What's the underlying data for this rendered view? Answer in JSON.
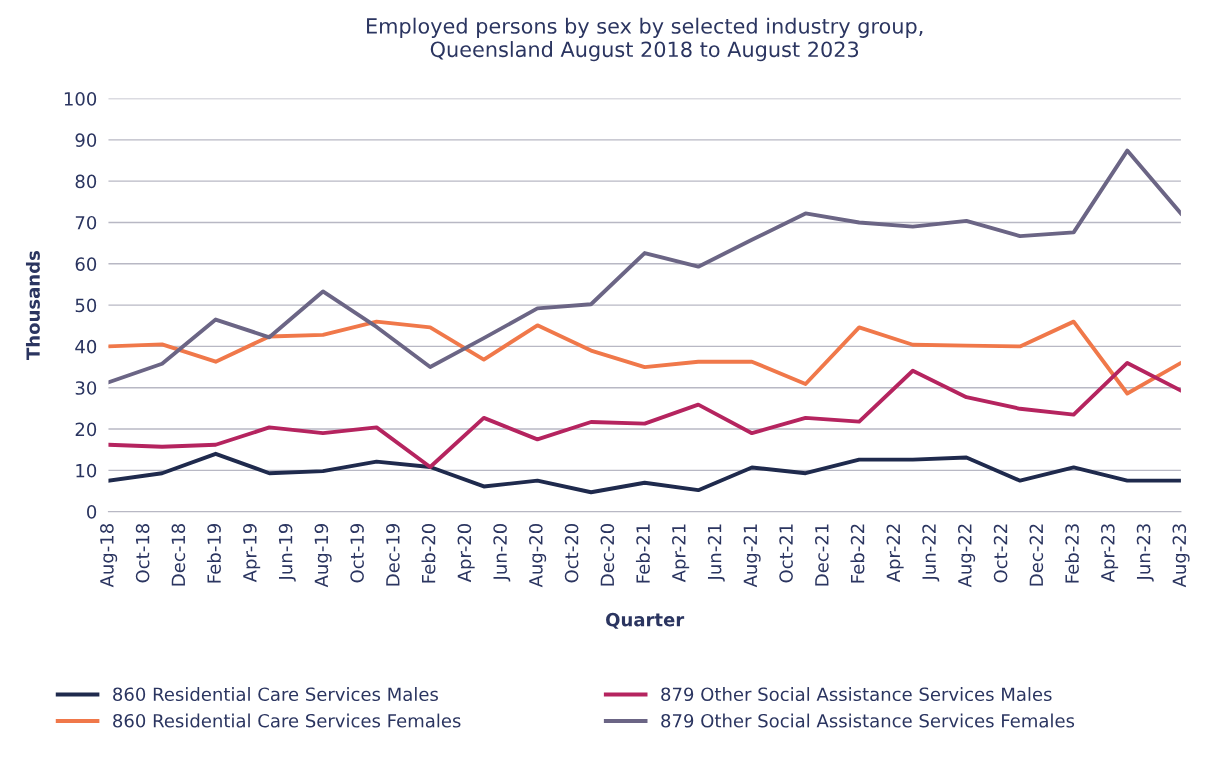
{
  "chart_data": {
    "type": "line",
    "title": "Employed persons by sex by selected industry group,\nQueensland August 2018 to August 2023",
    "xlabel": "Quarter",
    "ylabel": "Thousands",
    "x": [
      "2018-08",
      "2018-11",
      "2019-02",
      "2019-05",
      "2019-08",
      "2019-11",
      "2020-02",
      "2020-05",
      "2020-08",
      "2020-11",
      "2021-02",
      "2021-05",
      "2021-08",
      "2021-11",
      "2022-02",
      "2022-05",
      "2022-08",
      "2022-11",
      "2023-02",
      "2023-05",
      "2023-08"
    ],
    "series": [
      {
        "name": "860 Residential Care Services Males",
        "color": "#1f2a4d",
        "values": [
          7.5,
          9.3,
          14.0,
          9.3,
          9.8,
          12.1,
          10.8,
          6.1,
          7.5,
          4.7,
          7.0,
          5.2,
          10.7,
          9.3,
          12.6,
          12.6,
          13.1,
          7.5,
          10.7,
          7.5,
          7.5
        ]
      },
      {
        "name": "860 Residential Care Services Females",
        "color": "#f0784a",
        "values": [
          40.0,
          40.5,
          36.3,
          42.4,
          42.8,
          46.0,
          44.6,
          36.8,
          45.1,
          39.0,
          35.0,
          36.3,
          36.3,
          30.9,
          44.6,
          40.4,
          40.2,
          40.0,
          46.0,
          28.6,
          36.0
        ]
      },
      {
        "name": "879 Other Social Assistance Services Males",
        "color": "#b5245f",
        "values": [
          16.2,
          15.7,
          16.2,
          20.4,
          19.0,
          20.4,
          10.8,
          22.7,
          17.5,
          21.7,
          21.3,
          25.9,
          19.0,
          22.7,
          21.8,
          34.1,
          27.7,
          24.9,
          23.5,
          36.0,
          29.3
        ]
      },
      {
        "name": "879 Other Social Assistance Services Females",
        "color": "#6b6585",
        "values": [
          31.3,
          35.8,
          46.5,
          42.2,
          53.3,
          44.7,
          35.0,
          42.0,
          49.2,
          50.2,
          62.6,
          59.3,
          65.8,
          72.2,
          70.0,
          69.0,
          70.4,
          66.7,
          67.6,
          87.4,
          72.2
        ]
      }
    ],
    "xlim": [
      "2018-08",
      "2023-08"
    ],
    "xticks": [
      {
        "value": "2018-08",
        "label": "Aug-18"
      },
      {
        "value": "2018-10",
        "label": "Oct-18"
      },
      {
        "value": "2018-12",
        "label": "Dec-18"
      },
      {
        "value": "2019-02",
        "label": "Feb-19"
      },
      {
        "value": "2019-04",
        "label": "Apr-19"
      },
      {
        "value": "2019-06",
        "label": "Jun-19"
      },
      {
        "value": "2019-08",
        "label": "Aug-19"
      },
      {
        "value": "2019-10",
        "label": "Oct-19"
      },
      {
        "value": "2019-12",
        "label": "Dec-19"
      },
      {
        "value": "2020-02",
        "label": "Feb-20"
      },
      {
        "value": "2020-04",
        "label": "Apr-20"
      },
      {
        "value": "2020-06",
        "label": "Jun-20"
      },
      {
        "value": "2020-08",
        "label": "Aug-20"
      },
      {
        "value": "2020-10",
        "label": "Oct-20"
      },
      {
        "value": "2020-12",
        "label": "Dec-20"
      },
      {
        "value": "2021-02",
        "label": "Feb-21"
      },
      {
        "value": "2021-04",
        "label": "Apr-21"
      },
      {
        "value": "2021-06",
        "label": "Jun-21"
      },
      {
        "value": "2021-08",
        "label": "Aug-21"
      },
      {
        "value": "2021-10",
        "label": "Oct-21"
      },
      {
        "value": "2021-12",
        "label": "Dec-21"
      },
      {
        "value": "2022-02",
        "label": "Feb-22"
      },
      {
        "value": "2022-04",
        "label": "Apr-22"
      },
      {
        "value": "2022-06",
        "label": "Jun-22"
      },
      {
        "value": "2022-08",
        "label": "Aug-22"
      },
      {
        "value": "2022-10",
        "label": "Oct-22"
      },
      {
        "value": "2022-12",
        "label": "Dec-22"
      },
      {
        "value": "2023-02",
        "label": "Feb-23"
      },
      {
        "value": "2023-04",
        "label": "Apr-23"
      },
      {
        "value": "2023-06",
        "label": "Jun-23"
      },
      {
        "value": "2023-08",
        "label": "Aug-23"
      }
    ],
    "ylim": [
      0,
      100
    ],
    "yticks": [
      0,
      10,
      20,
      30,
      40,
      50,
      60,
      70,
      80,
      90,
      100
    ],
    "grid": "y",
    "legend": "bottom",
    "marker": "none",
    "line_style": "solid"
  }
}
